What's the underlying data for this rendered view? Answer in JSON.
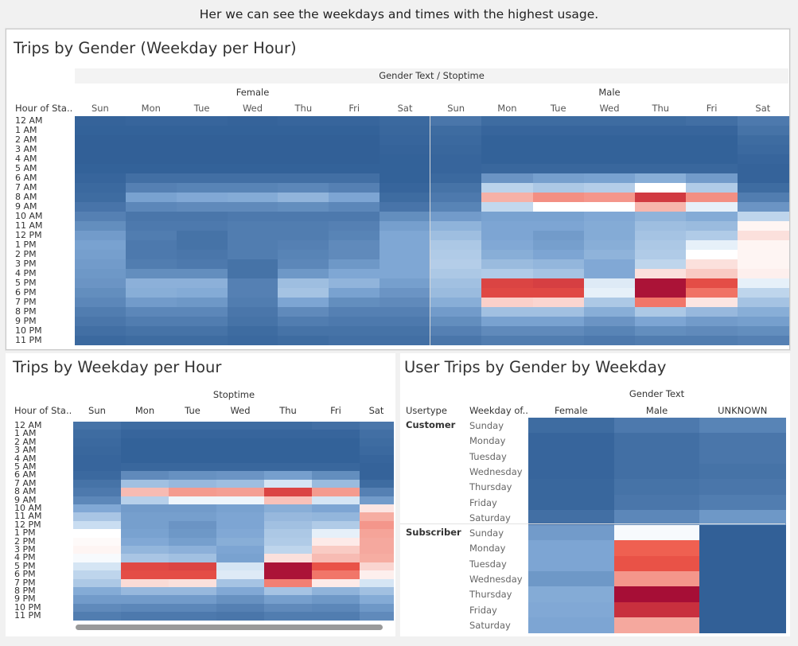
{
  "caption": "Her we can see the weekdays and times with the highest usage.",
  "colors": {
    "blue_dark": "#2c5b93",
    "blue_mid": "#7fa7d4",
    "blue_light": "#cde0f2",
    "white": "#ffffff",
    "red_light": "#f6b1a7",
    "red_mid": "#ee5748",
    "red_dark": "#a60e36"
  },
  "hours": [
    "12 AM",
    "1 AM",
    "2 AM",
    "3 AM",
    "4 AM",
    "5 AM",
    "6 AM",
    "7 AM",
    "8 AM",
    "9 AM",
    "10 AM",
    "11 AM",
    "12 PM",
    "1 PM",
    "2 PM",
    "3 PM",
    "4 PM",
    "5 PM",
    "6 PM",
    "7 PM",
    "8 PM",
    "9 PM",
    "10 PM",
    "11 PM"
  ],
  "days_short": [
    "Sun",
    "Mon",
    "Tue",
    "Wed",
    "Thu",
    "Fri",
    "Sat"
  ],
  "chart_data": [
    {
      "type": "heatmap",
      "title": "Trips by Gender (Weekday per Hour)",
      "column_header": "Gender Text  /  Stoptime",
      "row_header": "Hour of Sta..",
      "groups": [
        "Female",
        "Male"
      ],
      "scale": "diverging: -1 dark blue (low) … 0 white … +1 dark red (high), relative values",
      "values": {
        "Female": [
          [
            -0.95,
            -0.94,
            -0.94,
            -0.95,
            -0.94,
            -0.94,
            -0.92
          ],
          [
            -0.96,
            -0.96,
            -0.96,
            -0.96,
            -0.96,
            -0.96,
            -0.93
          ],
          [
            -0.97,
            -0.97,
            -0.97,
            -0.97,
            -0.97,
            -0.97,
            -0.94
          ],
          [
            -0.97,
            -0.97,
            -0.97,
            -0.97,
            -0.97,
            -0.97,
            -0.95
          ],
          [
            -0.97,
            -0.97,
            -0.97,
            -0.97,
            -0.97,
            -0.97,
            -0.96
          ],
          [
            -0.96,
            -0.96,
            -0.96,
            -0.96,
            -0.96,
            -0.96,
            -0.96
          ],
          [
            -0.94,
            -0.88,
            -0.88,
            -0.88,
            -0.88,
            -0.88,
            -0.96
          ],
          [
            -0.92,
            -0.78,
            -0.76,
            -0.76,
            -0.74,
            -0.78,
            -0.94
          ],
          [
            -0.9,
            -0.58,
            -0.54,
            -0.52,
            -0.45,
            -0.56,
            -0.9
          ],
          [
            -0.85,
            -0.74,
            -0.72,
            -0.72,
            -0.7,
            -0.74,
            -0.85
          ],
          [
            -0.78,
            -0.84,
            -0.84,
            -0.82,
            -0.82,
            -0.82,
            -0.7
          ],
          [
            -0.7,
            -0.82,
            -0.82,
            -0.8,
            -0.8,
            -0.78,
            -0.6
          ],
          [
            -0.62,
            -0.8,
            -0.86,
            -0.8,
            -0.8,
            -0.76,
            -0.55
          ],
          [
            -0.58,
            -0.82,
            -0.86,
            -0.8,
            -0.78,
            -0.72,
            -0.55
          ],
          [
            -0.6,
            -0.82,
            -0.84,
            -0.8,
            -0.76,
            -0.72,
            -0.55
          ],
          [
            -0.62,
            -0.8,
            -0.82,
            -0.86,
            -0.74,
            -0.64,
            -0.55
          ],
          [
            -0.64,
            -0.7,
            -0.7,
            -0.86,
            -0.64,
            -0.55,
            -0.55
          ],
          [
            -0.66,
            -0.48,
            -0.48,
            -0.78,
            -0.38,
            -0.45,
            -0.6
          ],
          [
            -0.7,
            -0.5,
            -0.52,
            -0.78,
            -0.34,
            -0.58,
            -0.66
          ],
          [
            -0.74,
            -0.62,
            -0.64,
            -0.8,
            -0.56,
            -0.7,
            -0.72
          ],
          [
            -0.8,
            -0.74,
            -0.74,
            -0.84,
            -0.72,
            -0.78,
            -0.78
          ],
          [
            -0.84,
            -0.8,
            -0.8,
            -0.86,
            -0.8,
            -0.82,
            -0.82
          ],
          [
            -0.88,
            -0.86,
            -0.86,
            -0.9,
            -0.86,
            -0.86,
            -0.86
          ],
          [
            -0.92,
            -0.9,
            -0.9,
            -0.92,
            -0.9,
            -0.88,
            -0.88
          ]
        ],
        "Male": [
          [
            -0.84,
            -0.9,
            -0.9,
            -0.9,
            -0.9,
            -0.88,
            -0.82
          ],
          [
            -0.9,
            -0.94,
            -0.94,
            -0.94,
            -0.94,
            -0.94,
            -0.86
          ],
          [
            -0.92,
            -0.96,
            -0.96,
            -0.96,
            -0.96,
            -0.96,
            -0.9
          ],
          [
            -0.93,
            -0.96,
            -0.96,
            -0.96,
            -0.96,
            -0.96,
            -0.92
          ],
          [
            -0.94,
            -0.96,
            -0.96,
            -0.96,
            -0.96,
            -0.96,
            -0.94
          ],
          [
            -0.94,
            -0.93,
            -0.93,
            -0.93,
            -0.93,
            -0.93,
            -0.95
          ],
          [
            -0.92,
            -0.66,
            -0.6,
            -0.58,
            -0.5,
            -0.62,
            -0.95
          ],
          [
            -0.86,
            -0.22,
            -0.3,
            -0.26,
            0.0,
            -0.28,
            -0.9
          ],
          [
            -0.82,
            0.3,
            0.45,
            0.42,
            0.82,
            0.45,
            -0.8
          ],
          [
            -0.76,
            -0.18,
            0.0,
            0.0,
            0.28,
            -0.06,
            -0.66
          ],
          [
            -0.62,
            -0.58,
            -0.58,
            -0.54,
            -0.46,
            -0.52,
            -0.2
          ],
          [
            -0.46,
            -0.56,
            -0.56,
            -0.52,
            -0.38,
            -0.4,
            0.04
          ],
          [
            -0.38,
            -0.56,
            -0.62,
            -0.52,
            -0.34,
            -0.28,
            0.12
          ],
          [
            -0.3,
            -0.54,
            -0.6,
            -0.5,
            -0.3,
            -0.06,
            0.04
          ],
          [
            -0.28,
            -0.5,
            -0.56,
            -0.46,
            -0.28,
            0.0,
            0.04
          ],
          [
            -0.26,
            -0.4,
            -0.44,
            -0.54,
            -0.2,
            0.12,
            0.04
          ],
          [
            -0.3,
            -0.28,
            -0.34,
            -0.54,
            0.12,
            0.2,
            0.06
          ],
          [
            -0.36,
            0.78,
            0.8,
            -0.08,
            0.98,
            0.74,
            -0.06
          ],
          [
            -0.4,
            0.76,
            0.76,
            -0.06,
            0.98,
            0.58,
            -0.2
          ],
          [
            -0.5,
            0.18,
            0.16,
            -0.3,
            0.56,
            0.1,
            -0.34
          ],
          [
            -0.62,
            -0.36,
            -0.36,
            -0.5,
            -0.3,
            -0.42,
            -0.5
          ],
          [
            -0.7,
            -0.58,
            -0.58,
            -0.66,
            -0.56,
            -0.62,
            -0.6
          ],
          [
            -0.78,
            -0.72,
            -0.72,
            -0.76,
            -0.7,
            -0.72,
            -0.7
          ],
          [
            -0.84,
            -0.8,
            -0.8,
            -0.82,
            -0.8,
            -0.8,
            -0.78
          ]
        ]
      }
    },
    {
      "type": "heatmap",
      "title": "Trips by Weekday per Hour",
      "column_header": "Stoptime",
      "row_header": "Hour of Sta..",
      "values": [
        [
          -0.86,
          -0.9,
          -0.9,
          -0.9,
          -0.9,
          -0.88,
          -0.84
        ],
        [
          -0.9,
          -0.94,
          -0.94,
          -0.94,
          -0.94,
          -0.94,
          -0.88
        ],
        [
          -0.92,
          -0.96,
          -0.96,
          -0.96,
          -0.96,
          -0.96,
          -0.9
        ],
        [
          -0.93,
          -0.96,
          -0.96,
          -0.96,
          -0.96,
          -0.96,
          -0.92
        ],
        [
          -0.94,
          -0.96,
          -0.96,
          -0.96,
          -0.96,
          -0.96,
          -0.94
        ],
        [
          -0.94,
          -0.93,
          -0.93,
          -0.93,
          -0.93,
          -0.93,
          -0.95
        ],
        [
          -0.92,
          -0.72,
          -0.68,
          -0.66,
          -0.6,
          -0.7,
          -0.95
        ],
        [
          -0.86,
          -0.36,
          -0.42,
          -0.38,
          -0.1,
          -0.4,
          -0.9
        ],
        [
          -0.82,
          0.26,
          0.4,
          0.38,
          0.78,
          0.4,
          -0.78
        ],
        [
          -0.74,
          -0.24,
          -0.04,
          -0.04,
          0.24,
          -0.1,
          -0.62
        ],
        [
          -0.54,
          -0.62,
          -0.62,
          -0.58,
          -0.5,
          -0.56,
          0.1
        ],
        [
          -0.32,
          -0.6,
          -0.6,
          -0.56,
          -0.42,
          -0.44,
          0.32
        ],
        [
          -0.14,
          -0.6,
          -0.66,
          -0.56,
          -0.36,
          -0.28,
          0.42
        ],
        [
          0.0,
          -0.58,
          -0.64,
          -0.54,
          -0.3,
          -0.06,
          0.36
        ],
        [
          0.02,
          -0.54,
          -0.6,
          -0.5,
          -0.28,
          0.08,
          0.34
        ],
        [
          0.04,
          -0.44,
          -0.48,
          -0.56,
          -0.2,
          0.2,
          0.34
        ],
        [
          -0.02,
          -0.32,
          -0.36,
          -0.58,
          0.12,
          0.26,
          0.32
        ],
        [
          -0.1,
          0.76,
          0.78,
          -0.1,
          0.98,
          0.72,
          0.16
        ],
        [
          -0.2,
          0.74,
          0.74,
          -0.08,
          0.98,
          0.56,
          0.06
        ],
        [
          -0.3,
          0.14,
          0.12,
          -0.34,
          0.52,
          0.08,
          -0.1
        ],
        [
          -0.52,
          -0.42,
          -0.42,
          -0.54,
          -0.34,
          -0.46,
          -0.36
        ],
        [
          -0.62,
          -0.62,
          -0.62,
          -0.68,
          -0.6,
          -0.64,
          -0.52
        ],
        [
          -0.72,
          -0.74,
          -0.74,
          -0.78,
          -0.72,
          -0.74,
          -0.64
        ],
        [
          -0.8,
          -0.82,
          -0.82,
          -0.84,
          -0.8,
          -0.8,
          -0.72
        ]
      ]
    },
    {
      "type": "heatmap",
      "title": "User Trips by Gender by Weekday",
      "column_header": "Gender Text",
      "row_headers": [
        "Usertype",
        "Weekday of.."
      ],
      "columns": [
        "Female",
        "Male",
        "UNKNOWN"
      ],
      "usertypes": [
        {
          "name": "Customer",
          "weekdays": [
            "Sunday",
            "Monday",
            "Tuesday",
            "Wednesday",
            "Thursday",
            "Friday",
            "Saturday"
          ],
          "values": [
            [
              -0.9,
              -0.82,
              -0.76
            ],
            [
              -0.94,
              -0.88,
              -0.84
            ],
            [
              -0.94,
              -0.88,
              -0.84
            ],
            [
              -0.94,
              -0.88,
              -0.86
            ],
            [
              -0.93,
              -0.86,
              -0.84
            ],
            [
              -0.93,
              -0.84,
              -0.8
            ],
            [
              -0.88,
              -0.74,
              -0.64
            ]
          ]
        },
        {
          "name": "Subscriber",
          "weekdays": [
            "Sunday",
            "Monday",
            "Tuesday",
            "Wednesday",
            "Thursday",
            "Friday",
            "Saturday"
          ],
          "values": [
            [
              -0.62,
              -0.02,
              -0.97
            ],
            [
              -0.56,
              0.66,
              -0.97
            ],
            [
              -0.56,
              0.72,
              -0.97
            ],
            [
              -0.64,
              0.42,
              -0.97
            ],
            [
              -0.52,
              1.0,
              -0.97
            ],
            [
              -0.54,
              0.86,
              -0.97
            ],
            [
              -0.56,
              0.34,
              -0.97
            ]
          ]
        }
      ]
    }
  ]
}
